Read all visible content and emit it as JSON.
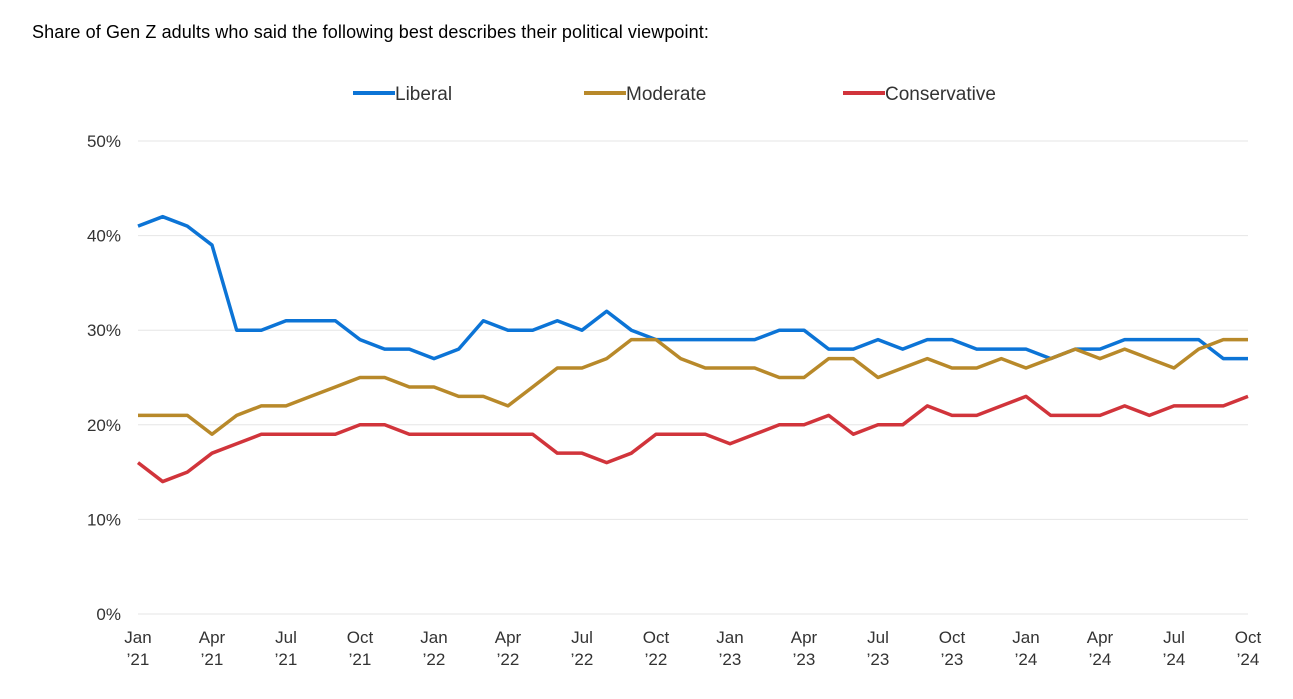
{
  "title": "Share of Gen Z adults who said the following best describes their political viewpoint:",
  "chart_data": {
    "type": "line",
    "title": "Share of Gen Z adults who said the following best describes their political viewpoint:",
    "xlabel": "",
    "ylabel": "",
    "ylim": [
      0,
      50
    ],
    "yticks": [
      0,
      10,
      20,
      30,
      40,
      50
    ],
    "ytick_labels": [
      "0%",
      "10%",
      "20%",
      "30%",
      "40%",
      "50%"
    ],
    "grid": true,
    "legend_position": "top",
    "x": [
      "Jan 2021",
      "Feb 2021",
      "Mar 2021",
      "Apr 2021",
      "May 2021",
      "Jun 2021",
      "Jul 2021",
      "Aug 2021",
      "Sep 2021",
      "Oct 2021",
      "Nov 2021",
      "Dec 2021",
      "Jan 2022",
      "Feb 2022",
      "Mar 2022",
      "Apr 2022",
      "May 2022",
      "Jun 2022",
      "Jul 2022",
      "Aug 2022",
      "Sep 2022",
      "Oct 2022",
      "Nov 2022",
      "Dec 2022",
      "Jan 2023",
      "Feb 2023",
      "Mar 2023",
      "Apr 2023",
      "May 2023",
      "Jun 2023",
      "Jul 2023",
      "Aug 2023",
      "Sep 2023",
      "Oct 2023",
      "Nov 2023",
      "Dec 2023",
      "Jan 2024",
      "Feb 2024",
      "Mar 2024",
      "Apr 2024",
      "May 2024",
      "Jun 2024",
      "Jul 2024",
      "Aug 2024",
      "Sep 2024",
      "Oct 2024"
    ],
    "xtick_labels": [
      {
        "index": 0,
        "top": "Jan",
        "bottom": "’21"
      },
      {
        "index": 3,
        "top": "Apr",
        "bottom": "’21"
      },
      {
        "index": 6,
        "top": "Jul",
        "bottom": "’21"
      },
      {
        "index": 9,
        "top": "Oct",
        "bottom": "’21"
      },
      {
        "index": 12,
        "top": "Jan",
        "bottom": "’22"
      },
      {
        "index": 15,
        "top": "Apr",
        "bottom": "’22"
      },
      {
        "index": 18,
        "top": "Jul",
        "bottom": "’22"
      },
      {
        "index": 21,
        "top": "Oct",
        "bottom": "’22"
      },
      {
        "index": 24,
        "top": "Jan",
        "bottom": "’23"
      },
      {
        "index": 27,
        "top": "Apr",
        "bottom": "’23"
      },
      {
        "index": 30,
        "top": "Jul",
        "bottom": "’23"
      },
      {
        "index": 33,
        "top": "Oct",
        "bottom": "’23"
      },
      {
        "index": 36,
        "top": "Jan",
        "bottom": "’24"
      },
      {
        "index": 39,
        "top": "Apr",
        "bottom": "’24"
      },
      {
        "index": 42,
        "top": "Jul",
        "bottom": "’24"
      },
      {
        "index": 45,
        "top": "Oct",
        "bottom": "’24"
      }
    ],
    "series": [
      {
        "name": "Liberal",
        "color": "#0c74d6",
        "values": [
          41,
          42,
          41,
          39,
          30,
          30,
          31,
          31,
          31,
          29,
          28,
          28,
          27,
          28,
          31,
          30,
          30,
          31,
          30,
          32,
          30,
          29,
          29,
          29,
          29,
          29,
          30,
          30,
          28,
          28,
          29,
          28,
          29,
          29,
          28,
          28,
          28,
          27,
          28,
          28,
          29,
          29,
          29,
          29,
          27,
          27
        ]
      },
      {
        "name": "Moderate",
        "color": "#b8892a",
        "values": [
          21,
          21,
          21,
          19,
          21,
          22,
          22,
          23,
          24,
          25,
          25,
          24,
          24,
          23,
          23,
          22,
          24,
          26,
          26,
          27,
          29,
          29,
          27,
          26,
          26,
          26,
          25,
          25,
          27,
          27,
          25,
          26,
          27,
          26,
          26,
          27,
          26,
          27,
          28,
          27,
          28,
          27,
          26,
          28,
          29,
          29
        ]
      },
      {
        "name": "Conservative",
        "color": "#d1343b",
        "values": [
          16,
          14,
          15,
          17,
          18,
          19,
          19,
          19,
          19,
          20,
          20,
          19,
          19,
          19,
          19,
          19,
          19,
          17,
          17,
          16,
          17,
          19,
          19,
          19,
          18,
          19,
          20,
          20,
          21,
          19,
          20,
          20,
          22,
          21,
          21,
          22,
          23,
          21,
          21,
          21,
          22,
          21,
          22,
          22,
          22,
          23
        ]
      }
    ]
  }
}
